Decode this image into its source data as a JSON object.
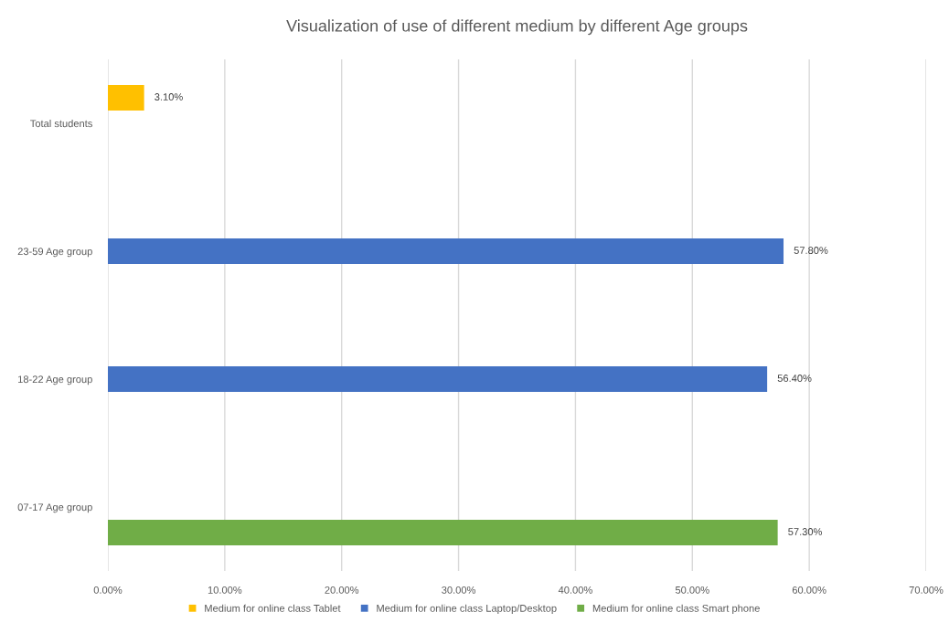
{
  "chart_data": {
    "type": "bar",
    "orientation": "horizontal",
    "title": "Visualization of use of different medium by different Age groups",
    "categories": [
      "Total students",
      "23-59 Age group",
      "18-22 Age group",
      "07-17 Age group"
    ],
    "series": [
      {
        "name": "Medium for online class Tablet",
        "color": "#ffc000",
        "values": [
          3.1,
          null,
          null,
          null
        ],
        "value_labels": [
          "3.10%",
          null,
          null,
          null
        ]
      },
      {
        "name": "Medium for online class Laptop/Desktop",
        "color": "#4472c4",
        "values": [
          null,
          57.8,
          56.4,
          null
        ],
        "value_labels": [
          null,
          "57.80%",
          "56.40%",
          null
        ]
      },
      {
        "name": "Medium for online class Smart phone",
        "color": "#70ad47",
        "values": [
          null,
          null,
          null,
          57.3
        ],
        "value_labels": [
          null,
          null,
          null,
          "57.30%"
        ]
      }
    ],
    "xlim": [
      0,
      70
    ],
    "xticks": [
      {
        "value": 0,
        "label": "0.00%"
      },
      {
        "value": 10,
        "label": "10.00%"
      },
      {
        "value": 20,
        "label": "20.00%"
      },
      {
        "value": 30,
        "label": "30.00%"
      },
      {
        "value": 40,
        "label": "40.00%"
      },
      {
        "value": 50,
        "label": "50.00%"
      },
      {
        "value": 60,
        "label": "60.00%"
      },
      {
        "value": 70,
        "label": "70.00%"
      }
    ],
    "grid": "x",
    "legend": "bottom"
  }
}
